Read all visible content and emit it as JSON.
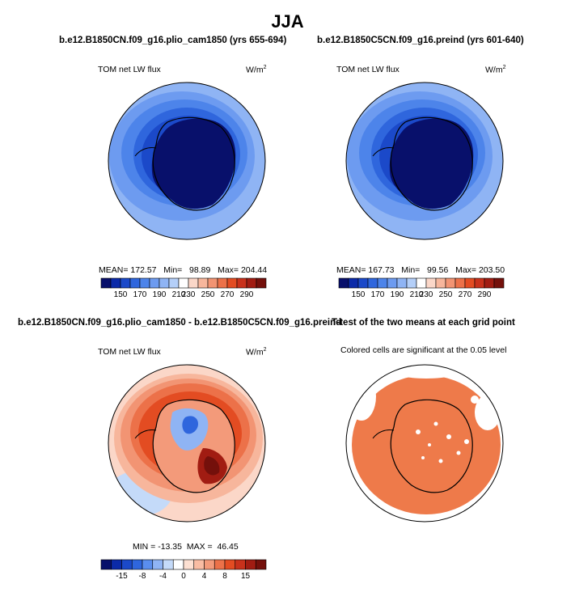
{
  "season_title": "JJA",
  "panels": {
    "p1": {
      "title": "b.e12.B1850CN.f09_g16.plio_cam1850 (yrs 655-694)",
      "variable": "TOM net LW flux",
      "units_base": "W/m",
      "units_exp": "2",
      "stats": "MEAN= 172.57   Min=   98.89   Max= 204.44"
    },
    "p2": {
      "title": "b.e12.B1850C5CN.f09_g16.preind (yrs 601-640)",
      "variable": "TOM net LW flux",
      "units_base": "W/m",
      "units_exp": "2",
      "stats": "MEAN= 167.73   Min=   99.56   Max= 203.50"
    },
    "p3": {
      "title": "b.e12.B1850CN.f09_g16.plio_cam1850 - b.e12.B1850C5CN.f09_g16.preind",
      "variable": "TOM net LW flux",
      "units_base": "W/m",
      "units_exp": "2",
      "stats": "MIN = -13.35  MAX =  46.45"
    },
    "p4": {
      "title": "T-test of the two means at each grid point",
      "subtitle": "Colored cells are significant at the 0.05 level"
    }
  },
  "chart_data": [
    {
      "type": "heatmap",
      "projection": "south-polar-stereographic",
      "title": "b.e12.B1850CN.f09_g16.plio_cam1850 (yrs 655-694)",
      "variable": "TOM net LW flux",
      "units": "W/m2",
      "stats": {
        "mean": 172.57,
        "min": 98.89,
        "max": 204.44
      },
      "colorbar": {
        "tick_labels": [
          "150",
          "170",
          "190",
          "210",
          "230",
          "250",
          "270",
          "290"
        ],
        "colors": [
          "#08106b",
          "#0b2aa8",
          "#1b49c9",
          "#2f66dd",
          "#4d84ea",
          "#6d9bf0",
          "#8fb4f4",
          "#b4cff8",
          "#ffffff",
          "#fbd7c8",
          "#f7b69c",
          "#f29473",
          "#ec7149",
          "#e34c22",
          "#c8311b",
          "#a11c12",
          "#74100b"
        ]
      },
      "field": {
        "pole": "deep-blue",
        "ring": "medium-blue",
        "outer": "light-blue"
      }
    },
    {
      "type": "heatmap",
      "projection": "south-polar-stereographic",
      "title": "b.e12.B1850C5CN.f09_g16.preind (yrs 601-640)",
      "variable": "TOM net LW flux",
      "units": "W/m2",
      "stats": {
        "mean": 167.73,
        "min": 99.56,
        "max": 203.5
      },
      "colorbar": {
        "tick_labels": [
          "150",
          "170",
          "190",
          "210",
          "230",
          "250",
          "270",
          "290"
        ],
        "colors": [
          "#08106b",
          "#0b2aa8",
          "#1b49c9",
          "#2f66dd",
          "#4d84ea",
          "#6d9bf0",
          "#8fb4f4",
          "#b4cff8",
          "#ffffff",
          "#fbd7c8",
          "#f7b69c",
          "#f29473",
          "#ec7149",
          "#e34c22",
          "#c8311b",
          "#a11c12",
          "#74100b"
        ]
      },
      "field": {
        "pole": "deep-blue",
        "ring": "medium-blue",
        "outer": "light-blue"
      }
    },
    {
      "type": "heatmap",
      "projection": "south-polar-stereographic",
      "title": "b.e12.B1850CN.f09_g16.plio_cam1850 - b.e12.B1850C5CN.f09_g16.preind",
      "variable": "TOM net LW flux",
      "units": "W/m2",
      "stats": {
        "min": -13.35,
        "max": 46.45
      },
      "colorbar": {
        "tick_labels": [
          "-15",
          "-8",
          "-4",
          "0",
          "4",
          "8",
          "15"
        ],
        "colors": [
          "#08106b",
          "#0b2aa8",
          "#1b49c9",
          "#2f66dd",
          "#5a8eee",
          "#8fb4f4",
          "#c4daf9",
          "#ffffff",
          "#fde0d2",
          "#f9bca3",
          "#f39a7a",
          "#ec7149",
          "#e34c22",
          "#c8311b",
          "#a11c12",
          "#74100b"
        ]
      },
      "field": {
        "continent": "mixed-blue-red",
        "ring": "orange-red",
        "outer": "light-red"
      }
    },
    {
      "type": "heatmap",
      "projection": "south-polar-stereographic",
      "title": "T-test of the two means at each grid point",
      "subtitle": "Colored cells are significant at the 0.05 level",
      "significance_color": "#ee7a4a",
      "field": {
        "significant": "most-of-domain",
        "not_significant": "outer-edge-and-scattered"
      }
    }
  ]
}
